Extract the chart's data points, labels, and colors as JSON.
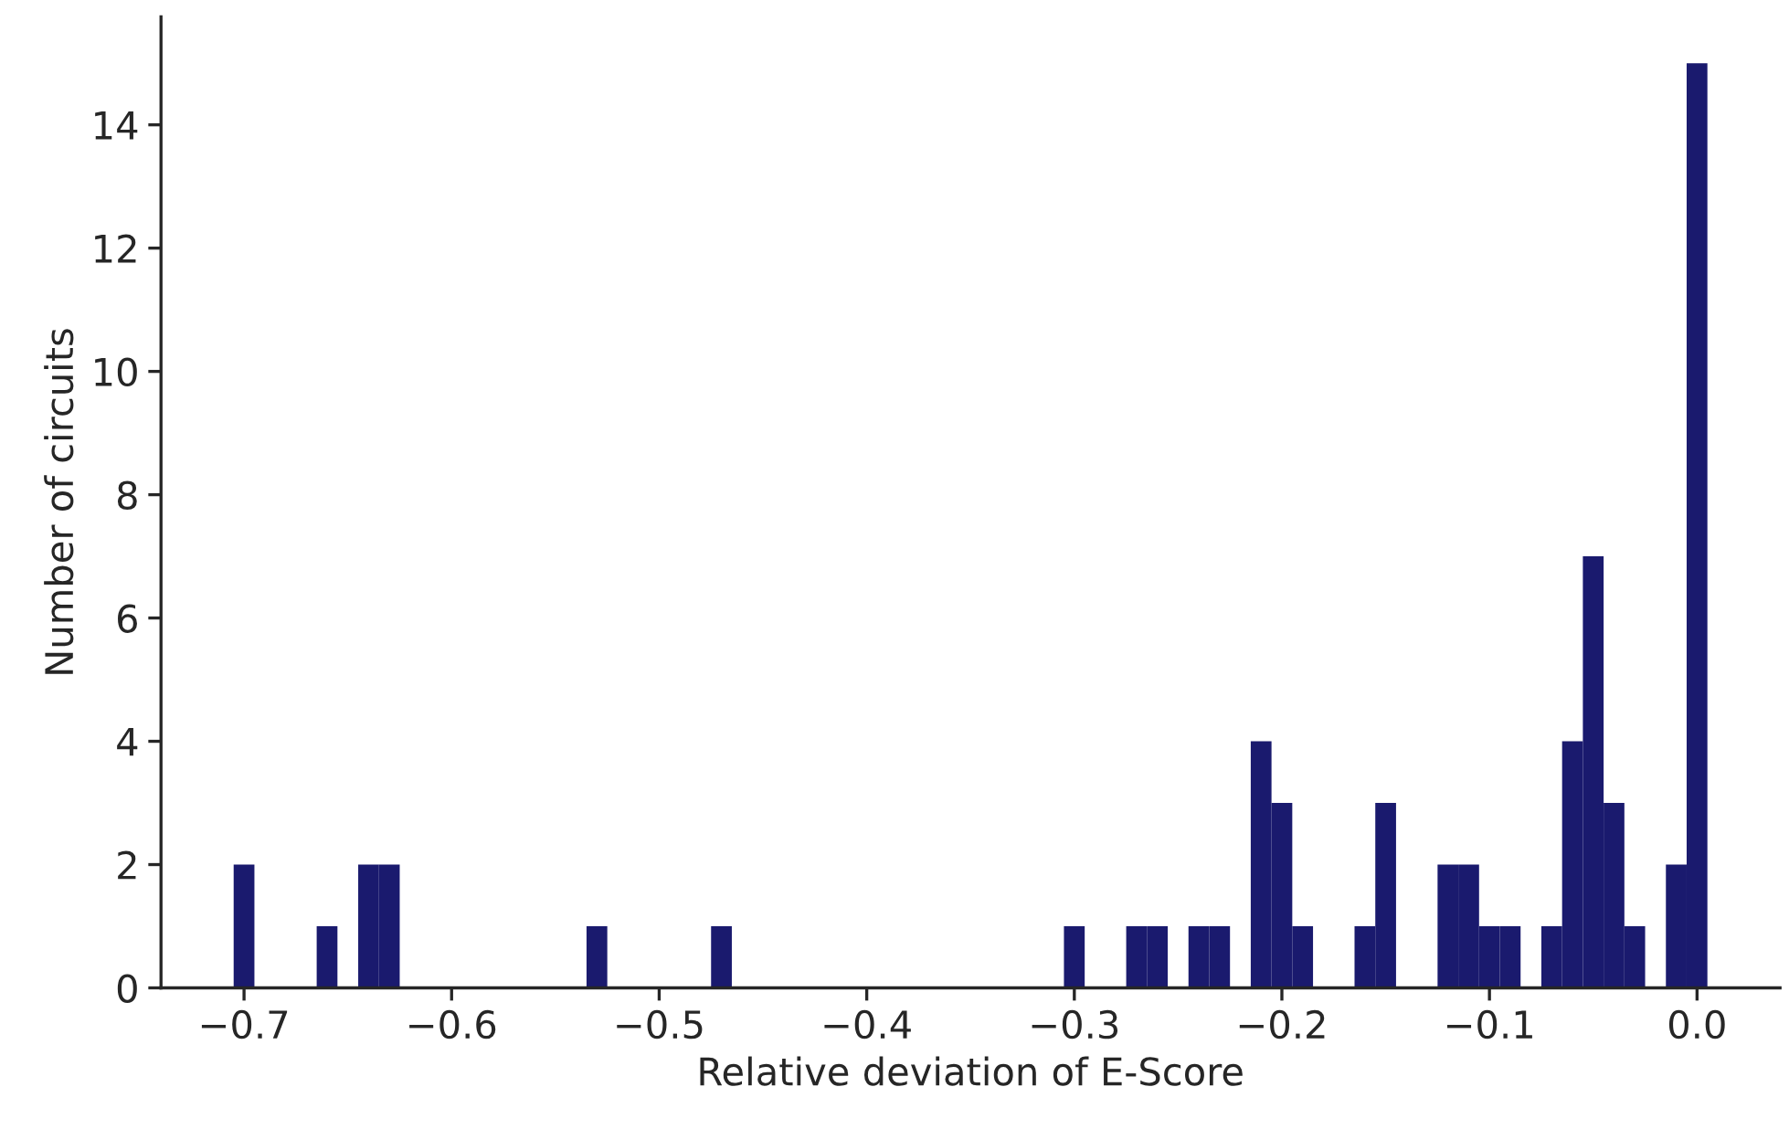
{
  "chart_data": {
    "type": "histogram",
    "xlabel": "Relative deviation of E-Score",
    "ylabel": "Number of circuits",
    "bins": [
      -0.705,
      -0.695,
      -0.685,
      -0.675,
      -0.665,
      -0.655,
      -0.645,
      -0.635,
      -0.625,
      -0.615,
      -0.605,
      -0.595,
      -0.585,
      -0.575,
      -0.565,
      -0.555,
      -0.545,
      -0.535,
      -0.525,
      -0.515,
      -0.505,
      -0.495,
      -0.485,
      -0.475,
      -0.465,
      -0.455,
      -0.445,
      -0.435,
      -0.425,
      -0.415,
      -0.405,
      -0.395,
      -0.385,
      -0.375,
      -0.365,
      -0.355,
      -0.345,
      -0.335,
      -0.325,
      -0.315,
      -0.305,
      -0.295,
      -0.285,
      -0.275,
      -0.265,
      -0.255,
      -0.245,
      -0.235,
      -0.225,
      -0.215,
      -0.205,
      -0.195,
      -0.185,
      -0.175,
      -0.165,
      -0.155,
      -0.145,
      -0.135,
      -0.125,
      -0.115,
      -0.105,
      -0.095,
      -0.085,
      -0.075,
      -0.065,
      -0.055,
      -0.045,
      -0.035,
      -0.025,
      -0.015,
      -0.005,
      0.005
    ],
    "values": [
      2,
      0,
      0,
      0,
      1,
      0,
      2,
      2,
      0,
      0,
      0,
      0,
      0,
      0,
      0,
      0,
      0,
      1,
      0,
      0,
      0,
      0,
      0,
      1,
      0,
      0,
      0,
      0,
      0,
      0,
      0,
      0,
      0,
      0,
      0,
      0,
      0,
      0,
      0,
      0,
      1,
      0,
      0,
      1,
      1,
      0,
      1,
      1,
      0,
      4,
      3,
      1,
      0,
      0,
      1,
      3,
      0,
      0,
      2,
      2,
      1,
      1,
      0,
      1,
      4,
      7,
      3,
      1,
      0,
      2,
      15
    ],
    "color": "#1a1a6e",
    "xlim": [
      -0.74,
      0.04
    ],
    "ylim": [
      0,
      15.75
    ],
    "xticks": [
      {
        "value": -0.7,
        "label": "−0.7"
      },
      {
        "value": -0.6,
        "label": "−0.6"
      },
      {
        "value": -0.5,
        "label": "−0.5"
      },
      {
        "value": -0.4,
        "label": "−0.4"
      },
      {
        "value": -0.3,
        "label": "−0.3"
      },
      {
        "value": -0.2,
        "label": "−0.2"
      },
      {
        "value": -0.1,
        "label": "−0.1"
      },
      {
        "value": 0.0,
        "label": "0.0"
      }
    ],
    "yticks": [
      0,
      2,
      4,
      6,
      8,
      10,
      12,
      14
    ],
    "grid": false
  }
}
